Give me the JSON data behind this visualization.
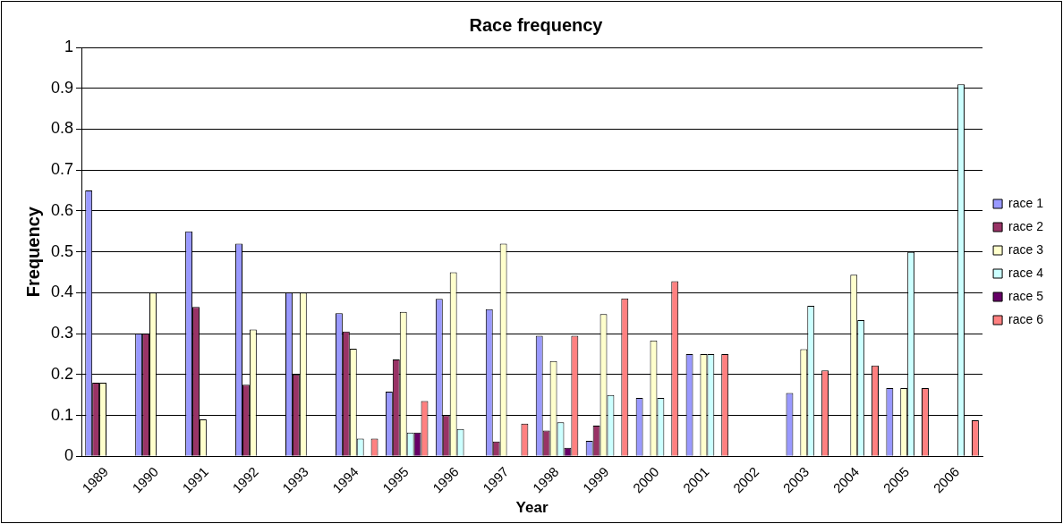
{
  "chart_data": {
    "type": "bar",
    "title": "Race frequency",
    "xlabel": "Year",
    "ylabel": "Frequency",
    "categories": [
      "1989",
      "1990",
      "1991",
      "1992",
      "1993",
      "1994",
      "1995",
      "1996",
      "1997",
      "1998",
      "1999",
      "2000",
      "2001",
      "2002",
      "2003",
      "2004",
      "2005",
      "2006"
    ],
    "series": [
      {
        "name": "race 1",
        "color": "#9999ff",
        "values": [
          0.65,
          0.3,
          0.55,
          0.52,
          0.4,
          0.35,
          0.158,
          0.385,
          0.36,
          0.295,
          0.038,
          0.143,
          0.25,
          null,
          0.155,
          null,
          0.167,
          null
        ]
      },
      {
        "name": "race 2",
        "color": "#993366",
        "values": [
          0.18,
          0.3,
          0.365,
          0.175,
          0.2,
          0.305,
          0.237,
          0.1,
          0.036,
          0.063,
          0.075,
          null,
          null,
          null,
          null,
          null,
          null,
          null
        ]
      },
      {
        "name": "race 3",
        "color": "#ffffcc",
        "values": [
          0.18,
          0.4,
          0.09,
          0.31,
          0.4,
          0.263,
          0.353,
          0.45,
          0.52,
          0.233,
          0.348,
          0.283,
          0.25,
          null,
          0.262,
          0.444,
          0.167,
          null
        ]
      },
      {
        "name": "race 4",
        "color": "#ccffff",
        "values": [
          null,
          null,
          null,
          null,
          null,
          0.043,
          0.058,
          0.067,
          null,
          0.083,
          0.15,
          0.143,
          0.25,
          null,
          0.368,
          0.333,
          0.5,
          0.91
        ]
      },
      {
        "name": "race 5",
        "color": "#660066",
        "values": [
          null,
          null,
          null,
          null,
          null,
          null,
          0.058,
          null,
          null,
          0.021,
          null,
          null,
          null,
          null,
          null,
          null,
          null,
          null
        ]
      },
      {
        "name": "race 6",
        "color": "#ff8080",
        "values": [
          null,
          null,
          null,
          null,
          null,
          0.043,
          0.135,
          null,
          0.08,
          0.295,
          0.386,
          0.428,
          0.25,
          null,
          0.21,
          0.222,
          0.167,
          0.088
        ]
      }
    ],
    "ylim": [
      0,
      1
    ],
    "yticks": [
      0,
      0.1,
      0.2,
      0.3,
      0.4,
      0.5,
      0.6,
      0.7,
      0.8,
      0.9,
      1
    ],
    "grid": "y",
    "legend": "right"
  }
}
